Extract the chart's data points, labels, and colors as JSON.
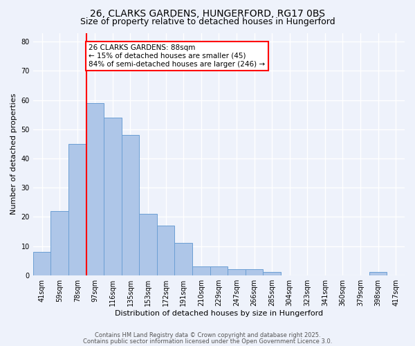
{
  "title_line1": "26, CLARKS GARDENS, HUNGERFORD, RG17 0BS",
  "title_line2": "Size of property relative to detached houses in Hungerford",
  "xlabel": "Distribution of detached houses by size in Hungerford",
  "ylabel": "Number of detached properties",
  "bin_labels": [
    "41sqm",
    "59sqm",
    "78sqm",
    "97sqm",
    "116sqm",
    "135sqm",
    "153sqm",
    "172sqm",
    "191sqm",
    "210sqm",
    "229sqm",
    "247sqm",
    "266sqm",
    "285sqm",
    "304sqm",
    "323sqm",
    "341sqm",
    "360sqm",
    "379sqm",
    "398sqm",
    "417sqm"
  ],
  "bin_values": [
    8,
    22,
    45,
    59,
    54,
    48,
    21,
    17,
    11,
    3,
    3,
    2,
    2,
    1,
    0,
    0,
    0,
    0,
    0,
    1,
    0
  ],
  "bar_color": "#aec6e8",
  "bar_edge_color": "#6b9fd4",
  "red_line_x": 2.5,
  "annotation_text": "26 CLARKS GARDENS: 88sqm\n← 15% of detached houses are smaller (45)\n84% of semi-detached houses are larger (246) →",
  "annotation_box_color": "white",
  "annotation_box_edge_color": "red",
  "ylim": [
    0,
    83
  ],
  "yticks": [
    0,
    10,
    20,
    30,
    40,
    50,
    60,
    70,
    80
  ],
  "background_color": "#eef2fb",
  "grid_color": "white",
  "footer_line1": "Contains HM Land Registry data © Crown copyright and database right 2025.",
  "footer_line2": "Contains public sector information licensed under the Open Government Licence 3.0.",
  "title_fontsize": 10,
  "subtitle_fontsize": 9,
  "annot_fontsize": 7.5,
  "tick_fontsize": 7,
  "axis_label_fontsize": 8
}
